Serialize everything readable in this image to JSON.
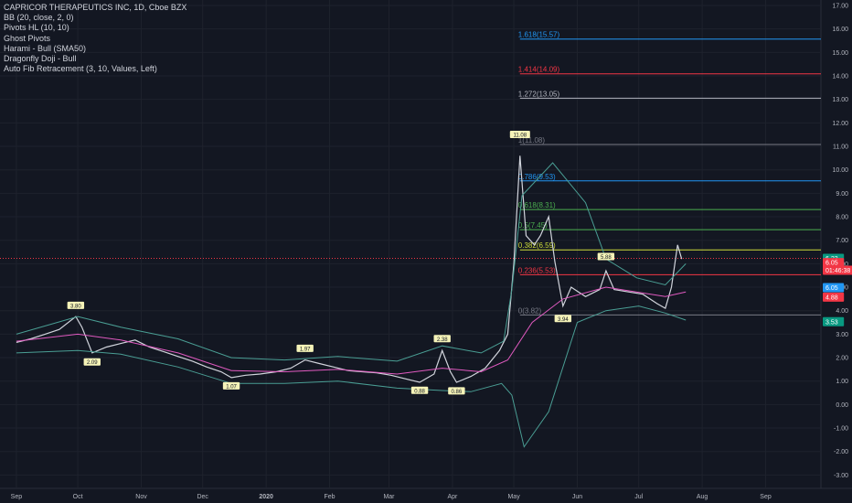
{
  "legend": {
    "title": "CAPRICOR THERAPEUTICS INC, 1D, Cboe BZX",
    "indicators": [
      "BB (20, close, 2, 0)",
      "Pivots HL (10, 10)",
      "Ghost Pivots",
      "Harami - Bull (SMA50)",
      "Dragonfly Doji - Bull",
      "Auto Fib Retracement (3, 10, Values, Left)"
    ]
  },
  "chart_data": {
    "type": "line",
    "y_ticks": [
      "17.00",
      "16.00",
      "15.00",
      "14.00",
      "13.00",
      "12.00",
      "11.00",
      "10.00",
      "9.00",
      "8.00",
      "7.00",
      "6.00",
      "5.00",
      "4.00",
      "3.00",
      "2.00",
      "1.00",
      "0.00",
      "-1.00",
      "-2.00",
      "-3.00"
    ],
    "x_ticks": [
      "Sep",
      "Oct",
      "Nov",
      "Dec",
      "2020",
      "Feb",
      "Mar",
      "Apr",
      "May",
      "Jun",
      "Jul",
      "Aug",
      "Sep"
    ],
    "ylim": [
      -3.5,
      17.3
    ],
    "fib_levels": [
      {
        "label": "1.618(15.57)",
        "value": 15.57,
        "color": "#2196f3"
      },
      {
        "label": "1.414(14.09)",
        "value": 14.09,
        "color": "#f23645"
      },
      {
        "label": "1.272(13.05)",
        "value": 13.05,
        "color": "#b2b5be"
      },
      {
        "label": "1(11.08)",
        "value": 11.08,
        "color": "#787b86"
      },
      {
        "label": "0.786(9.53)",
        "value": 9.53,
        "color": "#2196f3"
      },
      {
        "label": "0.618(8.31)",
        "value": 8.31,
        "color": "#4caf50"
      },
      {
        "label": "0.5(7.45)",
        "value": 7.45,
        "color": "#4caf50"
      },
      {
        "label": "0.382(6.59)",
        "value": 6.59,
        "color": "#cddc39"
      },
      {
        "label": "0.236(5.53)",
        "value": 5.53,
        "color": "#f23645"
      },
      {
        "label": "0(3.82)",
        "value": 3.82,
        "color": "#787b86"
      }
    ],
    "pivot_labels": [
      {
        "label": "3.80",
        "date": "2019-09-30",
        "value": 3.8,
        "pos": "high"
      },
      {
        "label": "2.09",
        "date": "2019-10-08",
        "value": 2.09,
        "pos": "low"
      },
      {
        "label": "1.07",
        "date": "2019-12-15",
        "value": 1.07,
        "pos": "low"
      },
      {
        "label": "1.97",
        "date": "2020-01-20",
        "value": 1.97,
        "pos": "high"
      },
      {
        "label": "0.88",
        "date": "2020-03-16",
        "value": 0.88,
        "pos": "low"
      },
      {
        "label": "2.38",
        "date": "2020-03-27",
        "value": 2.38,
        "pos": "high"
      },
      {
        "label": "0.86",
        "date": "2020-04-03",
        "value": 0.86,
        "pos": "low"
      },
      {
        "label": "11.08",
        "date": "2020-05-04",
        "value": 11.08,
        "pos": "high"
      },
      {
        "label": "3.94",
        "date": "2020-05-25",
        "value": 3.94,
        "pos": "low"
      },
      {
        "label": "5.88",
        "date": "2020-06-15",
        "value": 5.88,
        "pos": "high"
      }
    ],
    "price_tags": [
      {
        "label": "6.23",
        "value": 6.23,
        "color": "#089981"
      },
      {
        "label": "6.05",
        "value": 6.05,
        "color": "#f23645"
      },
      {
        "label": "01:46:38",
        "value": 5.72,
        "color": "#f23645"
      },
      {
        "label": "6.05",
        "value": 4.98,
        "color": "#2196f3"
      },
      {
        "label": "4.88",
        "value": 4.58,
        "color": "#f23645"
      },
      {
        "label": "3.53",
        "value": 3.53,
        "color": "#089981"
      }
    ],
    "series": [
      {
        "color": "#d1d4dc",
        "points": [
          [
            "2019-09-01",
            2.65
          ],
          [
            "2019-09-08",
            2.8
          ],
          [
            "2019-09-15",
            3.0
          ],
          [
            "2019-09-22",
            3.2
          ],
          [
            "2019-09-30",
            3.75
          ],
          [
            "2019-10-03",
            3.3
          ],
          [
            "2019-10-08",
            2.2
          ],
          [
            "2019-10-15",
            2.45
          ],
          [
            "2019-10-22",
            2.6
          ],
          [
            "2019-10-29",
            2.75
          ],
          [
            "2019-11-05",
            2.45
          ],
          [
            "2019-11-12",
            2.25
          ],
          [
            "2019-11-19",
            2.05
          ],
          [
            "2019-11-26",
            1.85
          ],
          [
            "2019-12-03",
            1.6
          ],
          [
            "2019-12-10",
            1.4
          ],
          [
            "2019-12-15",
            1.15
          ],
          [
            "2019-12-22",
            1.25
          ],
          [
            "2019-12-29",
            1.3
          ],
          [
            "2020-01-06",
            1.4
          ],
          [
            "2020-01-13",
            1.55
          ],
          [
            "2020-01-20",
            1.9
          ],
          [
            "2020-01-27",
            1.75
          ],
          [
            "2020-02-03",
            1.6
          ],
          [
            "2020-02-10",
            1.45
          ],
          [
            "2020-02-17",
            1.4
          ],
          [
            "2020-02-24",
            1.35
          ],
          [
            "2020-03-02",
            1.25
          ],
          [
            "2020-03-09",
            1.1
          ],
          [
            "2020-03-16",
            0.95
          ],
          [
            "2020-03-23",
            1.3
          ],
          [
            "2020-03-27",
            2.3
          ],
          [
            "2020-03-31",
            1.4
          ],
          [
            "2020-04-03",
            0.95
          ],
          [
            "2020-04-10",
            1.2
          ],
          [
            "2020-04-17",
            1.55
          ],
          [
            "2020-04-24",
            2.3
          ],
          [
            "2020-04-28",
            3.0
          ],
          [
            "2020-05-01",
            6.0
          ],
          [
            "2020-05-04",
            10.6
          ],
          [
            "2020-05-07",
            7.2
          ],
          [
            "2020-05-11",
            6.8
          ],
          [
            "2020-05-14",
            7.2
          ],
          [
            "2020-05-18",
            8.0
          ],
          [
            "2020-05-21",
            6.1
          ],
          [
            "2020-05-25",
            4.2
          ],
          [
            "2020-05-29",
            5.0
          ],
          [
            "2020-06-05",
            4.6
          ],
          [
            "2020-06-12",
            4.9
          ],
          [
            "2020-06-15",
            5.7
          ],
          [
            "2020-06-19",
            4.9
          ],
          [
            "2020-06-26",
            4.8
          ],
          [
            "2020-07-03",
            4.7
          ],
          [
            "2020-07-10",
            4.3
          ],
          [
            "2020-07-14",
            4.1
          ],
          [
            "2020-07-17",
            5.0
          ],
          [
            "2020-07-20",
            6.8
          ],
          [
            "2020-07-22",
            6.2
          ]
        ]
      },
      {
        "color": "#4a9e94",
        "points": [
          [
            "2019-09-01",
            3.0
          ],
          [
            "2019-10-01",
            3.75
          ],
          [
            "2019-10-22",
            3.3
          ],
          [
            "2019-11-19",
            2.8
          ],
          [
            "2019-12-15",
            2.0
          ],
          [
            "2020-01-10",
            1.9
          ],
          [
            "2020-02-05",
            2.05
          ],
          [
            "2020-03-05",
            1.85
          ],
          [
            "2020-03-27",
            2.5
          ],
          [
            "2020-04-15",
            2.2
          ],
          [
            "2020-04-26",
            2.7
          ],
          [
            "2020-04-30",
            4.9
          ],
          [
            "2020-05-05",
            8.9
          ],
          [
            "2020-05-20",
            10.3
          ],
          [
            "2020-06-05",
            8.6
          ],
          [
            "2020-06-15",
            6.2
          ],
          [
            "2020-06-30",
            5.4
          ],
          [
            "2020-07-14",
            5.1
          ],
          [
            "2020-07-24",
            6.0
          ]
        ]
      },
      {
        "color": "#4a9e94",
        "points": [
          [
            "2019-09-01",
            2.2
          ],
          [
            "2019-10-01",
            2.3
          ],
          [
            "2019-10-22",
            2.15
          ],
          [
            "2019-11-19",
            1.6
          ],
          [
            "2019-12-15",
            0.9
          ],
          [
            "2020-01-10",
            0.9
          ],
          [
            "2020-02-05",
            1.0
          ],
          [
            "2020-03-05",
            0.7
          ],
          [
            "2020-03-27",
            0.6
          ],
          [
            "2020-04-10",
            0.55
          ],
          [
            "2020-04-25",
            0.9
          ],
          [
            "2020-04-30",
            0.4
          ],
          [
            "2020-05-06",
            -1.8
          ],
          [
            "2020-05-18",
            -0.3
          ],
          [
            "2020-06-01",
            3.5
          ],
          [
            "2020-06-15",
            4.0
          ],
          [
            "2020-07-01",
            4.2
          ],
          [
            "2020-07-14",
            3.9
          ],
          [
            "2020-07-24",
            3.6
          ]
        ]
      },
      {
        "color": "#e05ac0",
        "points": [
          [
            "2019-09-01",
            2.7
          ],
          [
            "2019-10-01",
            3.0
          ],
          [
            "2019-10-22",
            2.75
          ],
          [
            "2019-11-19",
            2.2
          ],
          [
            "2019-12-15",
            1.45
          ],
          [
            "2020-01-10",
            1.4
          ],
          [
            "2020-02-05",
            1.5
          ],
          [
            "2020-03-05",
            1.3
          ],
          [
            "2020-03-27",
            1.55
          ],
          [
            "2020-04-15",
            1.4
          ],
          [
            "2020-04-28",
            1.9
          ],
          [
            "2020-05-10",
            3.5
          ],
          [
            "2020-05-25",
            4.5
          ],
          [
            "2020-06-15",
            5.0
          ],
          [
            "2020-07-14",
            4.6
          ],
          [
            "2020-07-24",
            4.8
          ]
        ]
      }
    ]
  }
}
